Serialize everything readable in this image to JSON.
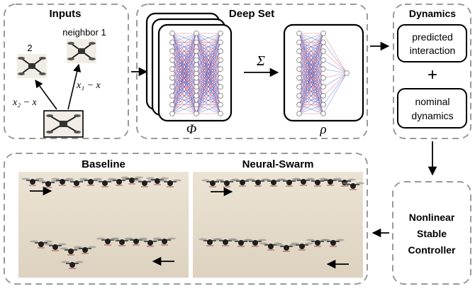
{
  "inputs": {
    "title": "Inputs",
    "neighbor1_label": "neighbor 1",
    "neighbor2_label": "2",
    "edge1_label": "x₁ − x",
    "edge2_label": "x₂ − x"
  },
  "deepset": {
    "title": "Deep Set",
    "phi_label": "Φ",
    "sum_label": "Σ",
    "rho_label": "ρ"
  },
  "dynamics": {
    "title": "Dynamics",
    "box1_line1": "predicted",
    "box1_line2": "interaction",
    "plus": "+",
    "box2_line1": "nominal",
    "box2_line2": "dynamics"
  },
  "controller": {
    "line1": "Nonlinear",
    "line2": "Stable",
    "line3": "Controller"
  },
  "comparison": {
    "baseline_title": "Baseline",
    "neural_title": "Neural-Swarm"
  },
  "colors": {
    "border": "#9a9a9a",
    "edge_red": "#e06060",
    "edge_blue": "#4a60d0",
    "photo_bg": "#e6dccb"
  }
}
